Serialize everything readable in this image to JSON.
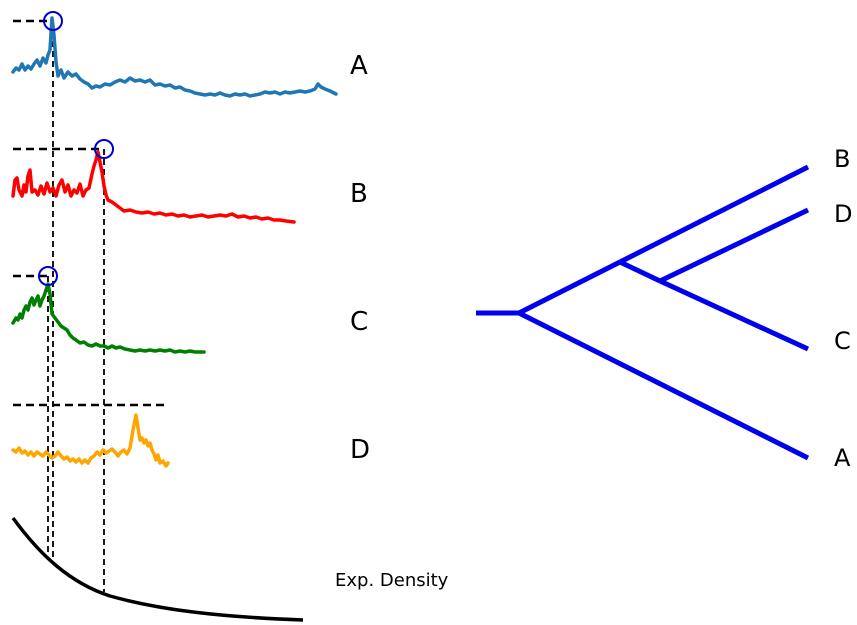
{
  "series": [
    {
      "label": "A",
      "color": "#1f77b4",
      "peak_marker": true
    },
    {
      "label": "B",
      "color": "#ff0000",
      "peak_marker": true
    },
    {
      "label": "C",
      "color": "#008000",
      "peak_marker": true
    },
    {
      "label": "D",
      "color": "#ffa500",
      "peak_marker": false
    }
  ],
  "density_label": "Exp. Density",
  "tree": {
    "color": "#0000ee",
    "leaves": [
      "B",
      "D",
      "C",
      "A"
    ]
  },
  "marker_color": "#0000cc"
}
